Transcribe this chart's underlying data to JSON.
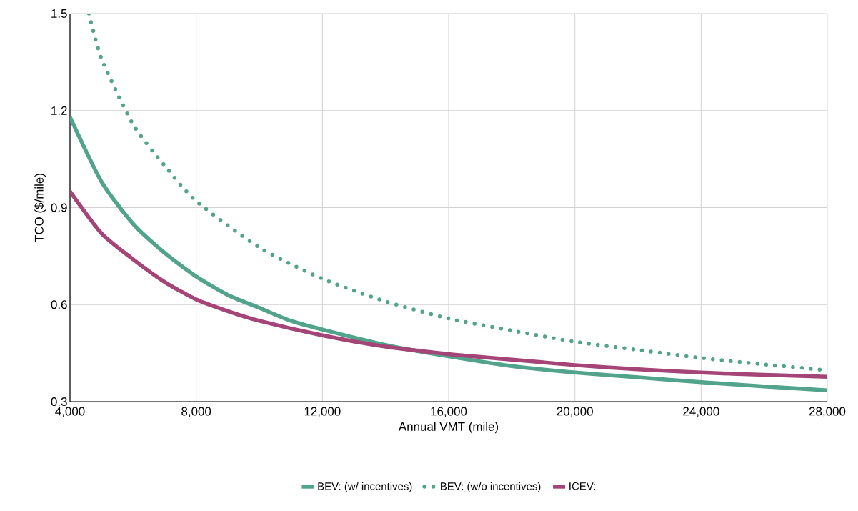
{
  "chart_data": {
    "type": "line",
    "xlabel": "Annual VMT (mile)",
    "ylabel": "TCO ($/mile)",
    "xlim": [
      4000,
      28000
    ],
    "ylim": [
      0.3,
      1.5
    ],
    "xticks": [
      {
        "value": 4000,
        "label": "4,000"
      },
      {
        "value": 8000,
        "label": "8,000"
      },
      {
        "value": 12000,
        "label": "12,000"
      },
      {
        "value": 16000,
        "label": "16,000"
      },
      {
        "value": 20000,
        "label": "20,000"
      },
      {
        "value": 24000,
        "label": "24,000"
      },
      {
        "value": 28000,
        "label": "28,000"
      }
    ],
    "yticks": [
      0.3,
      0.6,
      0.9,
      1.2,
      1.5
    ],
    "grid": true,
    "legend": "bottom",
    "marker": "none",
    "series": [
      {
        "name": "BEV: (w/ incentives)",
        "color": "#52a38b",
        "line_style": "solid",
        "x": [
          4000,
          5000,
          6000,
          7000,
          8000,
          9000,
          10000,
          11000,
          12000,
          14000,
          16000,
          18000,
          20000,
          22000,
          24000,
          26000,
          28000
        ],
        "values": [
          1.18,
          0.98,
          0.85,
          0.76,
          0.687,
          0.63,
          0.59,
          0.55,
          0.523,
          0.475,
          0.44,
          0.41,
          0.39,
          0.375,
          0.36,
          0.347,
          0.335
        ]
      },
      {
        "name": "BEV: (w/o incentives)",
        "color": "#52a38b",
        "line_style": "dotted",
        "x": [
          4600,
          5000,
          6000,
          7000,
          8000,
          10000,
          12000,
          14000,
          16000,
          18000,
          20000,
          22000,
          24000,
          26000,
          28000
        ],
        "values": [
          1.5,
          1.36,
          1.157,
          1.03,
          0.92,
          0.777,
          0.68,
          0.61,
          0.557,
          0.52,
          0.485,
          0.46,
          0.435,
          0.415,
          0.397
        ]
      },
      {
        "name": "ICEV:",
        "color": "#a44477",
        "line_style": "solid",
        "x": [
          4000,
          5000,
          6000,
          7000,
          8000,
          9000,
          10000,
          12000,
          14000,
          16000,
          18000,
          20000,
          22000,
          24000,
          26000,
          28000
        ],
        "values": [
          0.95,
          0.82,
          0.74,
          0.67,
          0.616,
          0.58,
          0.55,
          0.505,
          0.47,
          0.447,
          0.43,
          0.413,
          0.4,
          0.39,
          0.383,
          0.377
        ]
      }
    ]
  }
}
